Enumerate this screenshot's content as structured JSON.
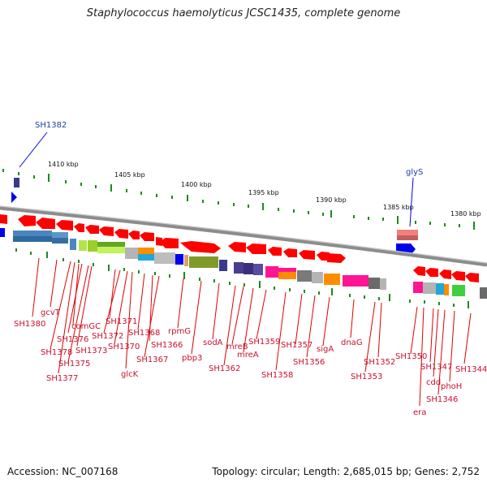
{
  "title": "Staphylococcus haemolyticus JCSC1435, complete genome",
  "footer": {
    "accession": "Accession: NC_007168",
    "summary": "Topology: circular; Length: 2,685,015 bp; Genes: 2,752"
  },
  "colors": {
    "gene_red": "#ff0000",
    "tick_green": "#1d8a1d",
    "backbone": "#8c8c8c",
    "feature_blue": "#0000ee",
    "label_red": "#c8102e"
  },
  "ruler": {
    "labels": [
      "1410 kbp",
      "1405 kbp",
      "1400 kbp",
      "1395 kbp",
      "1390 kbp",
      "1385 kbp",
      "1380 kbp"
    ]
  },
  "top_features": [
    "SH1382",
    "glyS"
  ],
  "gene_labels": [
    "SH1380",
    "gcvT",
    "comGC",
    "SH1376",
    "SH1378",
    "SH1373",
    "SH1375",
    "SH1377",
    "SH1371",
    "SH1372",
    "SH1370",
    "SH1368",
    "glcK",
    "SH1367",
    "SH1366",
    "rpmG",
    "pbp3",
    "sodA",
    "SH1362",
    "mreB",
    "mreA",
    "SH1359",
    "SH1358",
    "SH1357",
    "SH1356",
    "sigA",
    "dnaG",
    "SH1353",
    "SH1352",
    "SH1350",
    "era",
    "SH1347",
    "cdd",
    "SH1346",
    "phoH",
    "SH1344"
  ]
}
